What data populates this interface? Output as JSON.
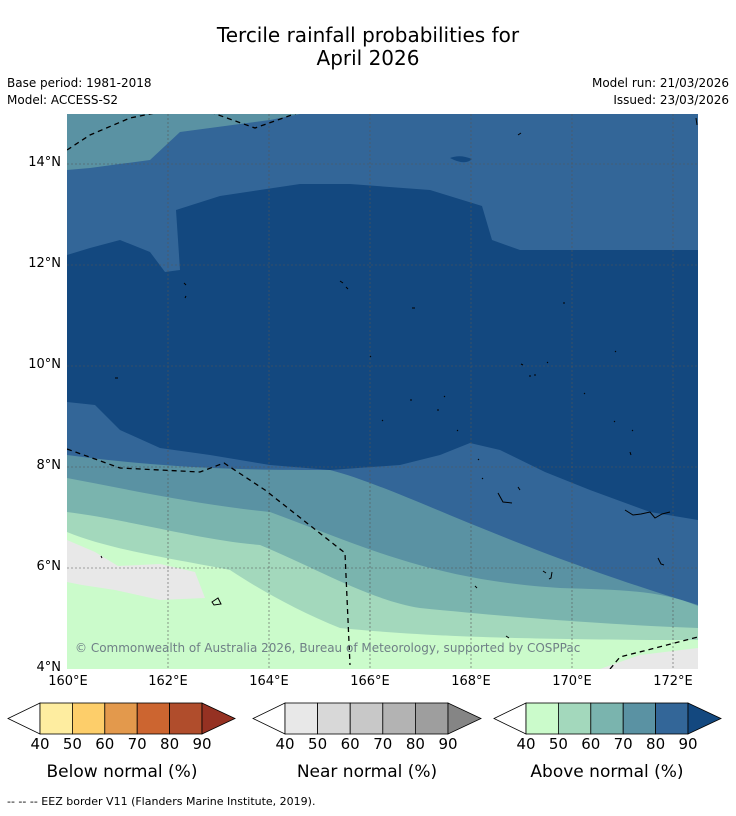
{
  "header": {
    "title_line1": "Tercile rainfall probabilities for",
    "title_line2": "April 2026",
    "base_period": "Base period: 1981-2018",
    "model": "Model: ACCESS-S2",
    "model_run": "Model run: 21/03/2026",
    "issued": "Issued: 23/03/2026"
  },
  "map": {
    "lat_labels": [
      "14°N",
      "12°N",
      "10°N",
      "8°N",
      "6°N",
      "4°N"
    ],
    "lon_labels": [
      "160°E",
      "162°E",
      "164°E",
      "166°E",
      "168°E",
      "170°E",
      "172°E"
    ],
    "copyright": "© Commonwealth of Australia 2026, Bureau of Meteorology, supported by COSPPac"
  },
  "colorbars": [
    {
      "title": "Below normal (%)",
      "ticks": [
        "40",
        "50",
        "60",
        "70",
        "80",
        "90"
      ],
      "colors": [
        "#ffffff",
        "#feeda0",
        "#fdce6a",
        "#e3994c",
        "#cc6530",
        "#b04d2c",
        "#953122"
      ]
    },
    {
      "title": "Near normal (%)",
      "ticks": [
        "40",
        "50",
        "60",
        "70",
        "80",
        "90"
      ],
      "colors": [
        "#ffffff",
        "#e8e8e8",
        "#d8d8d8",
        "#c8c8c8",
        "#b3b3b3",
        "#9e9e9e",
        "#858585"
      ]
    },
    {
      "title": "Above normal (%)",
      "ticks": [
        "40",
        "50",
        "60",
        "70",
        "80",
        "90"
      ],
      "colors": [
        "#ffffff",
        "#cbfbcb",
        "#a3d8bc",
        "#7ab4ae",
        "#5a92a3",
        "#336698",
        "#13487f"
      ]
    }
  ],
  "legend": {
    "eez_text": "--  --  -- EEZ border V11 (Flanders Marine Institute, 2019)."
  }
}
